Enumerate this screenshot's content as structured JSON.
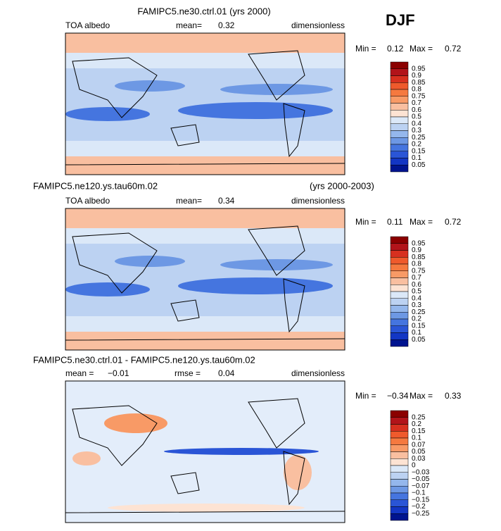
{
  "season": "DJF",
  "panels": [
    {
      "title": "FAMIPC5.ne30.ctrl.01 (yrs 2000)",
      "variable": "TOA albedo",
      "mean_label": "mean=",
      "mean": "0.32",
      "units": "dimensionless",
      "min_label": "Min =",
      "min": "0.12",
      "max_label": "Max =",
      "max": "0.72",
      "colorbar": {
        "labels": [
          "0.95",
          "0.9",
          "0.85",
          "0.8",
          "0.75",
          "0.7",
          "0.6",
          "0.5",
          "0.4",
          "0.3",
          "0.25",
          "0.2",
          "0.15",
          "0.1",
          "0.05"
        ],
        "colors": [
          "#8b0000",
          "#b2141a",
          "#d7301f",
          "#ef5a2c",
          "#f5793f",
          "#f89a66",
          "#f9bfa0",
          "#fde3d3",
          "#dbe8f8",
          "#bcd2f2",
          "#94b7ec",
          "#6d98e4",
          "#4575df",
          "#2a55d6",
          "#1336c4",
          "#00148f"
        ]
      }
    },
    {
      "title": "FAMIPC5.ne120.ys.tau60m.02",
      "title_right": "(yrs 2000-2003)",
      "variable": "TOA albedo",
      "mean_label": "mean=",
      "mean": "0.34",
      "units": "dimensionless",
      "min_label": "Min =",
      "min": "0.11",
      "max_label": "Max =",
      "max": "0.72",
      "colorbar": {
        "labels": [
          "0.95",
          "0.9",
          "0.85",
          "0.8",
          "0.75",
          "0.7",
          "0.6",
          "0.5",
          "0.4",
          "0.3",
          "0.25",
          "0.2",
          "0.15",
          "0.1",
          "0.05"
        ],
        "colors": [
          "#8b0000",
          "#b2141a",
          "#d7301f",
          "#ef5a2c",
          "#f5793f",
          "#f89a66",
          "#f9bfa0",
          "#fde3d3",
          "#dbe8f8",
          "#bcd2f2",
          "#94b7ec",
          "#6d98e4",
          "#4575df",
          "#2a55d6",
          "#1336c4",
          "#00148f"
        ]
      }
    },
    {
      "title": "FAMIPC5.ne30.ctrl.01 - FAMIPC5.ne120.ys.tau60m.02",
      "mean_label": "mean =",
      "mean": "−0.01",
      "rmse_label": "rmse =",
      "rmse": "0.04",
      "units": "dimensionless",
      "min_label": "Min =",
      "min": "−0.34",
      "max_label": "Max =",
      "max": "0.33",
      "colorbar": {
        "labels": [
          "0.25",
          "0.2",
          "0.15",
          "0.1",
          "0.07",
          "0.05",
          "0.03",
          "0",
          "−0.03",
          "−0.05",
          "−0.07",
          "−0.1",
          "−0.15",
          "−0.2",
          "−0.25"
        ],
        "colors": [
          "#8b0000",
          "#b2141a",
          "#d7301f",
          "#ef5a2c",
          "#f5793f",
          "#f89a66",
          "#f9bfa0",
          "#fde3d3",
          "#dbe8f8",
          "#bcd2f2",
          "#94b7ec",
          "#6d98e4",
          "#4575df",
          "#2a55d6",
          "#1336c4",
          "#00148f"
        ]
      }
    }
  ]
}
